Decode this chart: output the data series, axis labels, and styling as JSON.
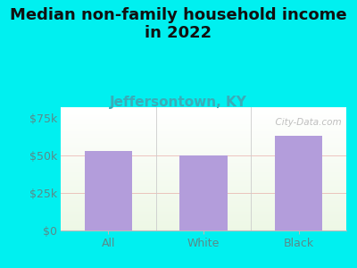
{
  "title": "Median non-family household income\nin 2022",
  "subtitle": "Jeffersontown, KY",
  "categories": [
    "All",
    "White",
    "Black"
  ],
  "values": [
    53000,
    50000,
    63000
  ],
  "bar_color": "#b39ddb",
  "title_fontsize": 13,
  "subtitle_fontsize": 11,
  "subtitle_color": "#3aacb8",
  "title_color": "#111111",
  "tick_color": "#5a8a8a",
  "yticks": [
    0,
    25000,
    50000,
    75000
  ],
  "ytick_labels": [
    "$0",
    "$25k",
    "$50k",
    "$75k"
  ],
  "ylim": [
    0,
    82000
  ],
  "bg_color": "#00f0f0",
  "watermark": "  City-Data.com",
  "grid_color": "#e08080",
  "grid_alpha": 0.45,
  "separator_color": "#cccccc",
  "bottom_spine_color": "#bbbbbb"
}
